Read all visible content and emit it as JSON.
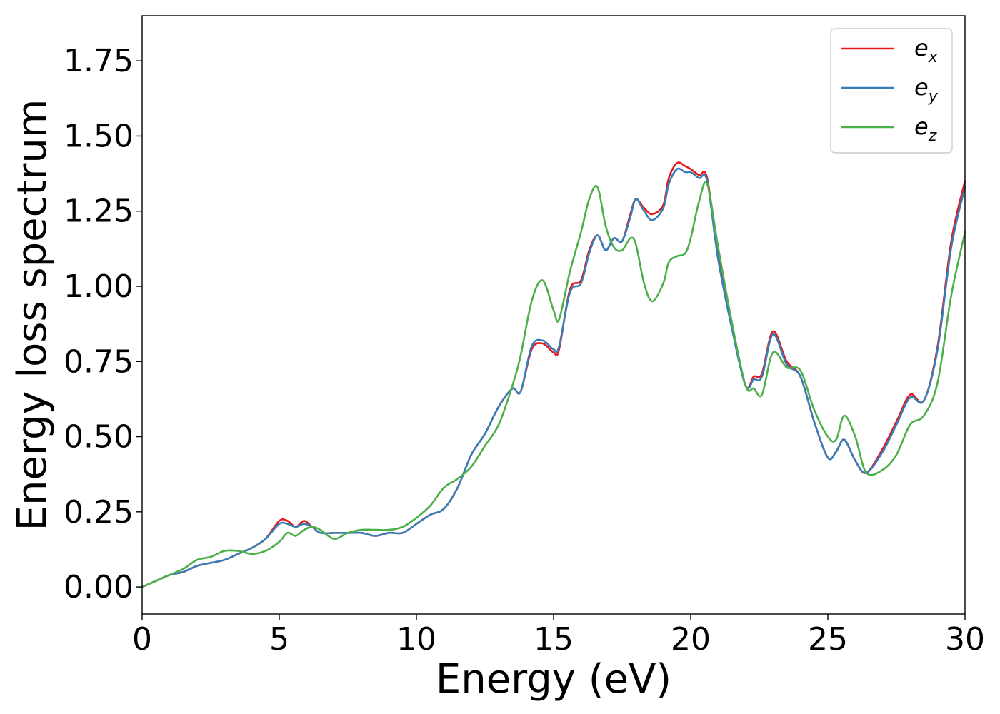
{
  "chart_data": {
    "type": "line",
    "title": "",
    "xlabel": "Energy (eV)",
    "ylabel": "Energy loss spectrum",
    "xlim": [
      0,
      30
    ],
    "ylim": [
      -0.09,
      1.9
    ],
    "xticks": [
      "0",
      "5",
      "10",
      "15",
      "20",
      "25",
      "30"
    ],
    "yticks": [
      "0.00",
      "0.25",
      "0.50",
      "0.75",
      "1.00",
      "1.25",
      "1.50",
      "1.75"
    ],
    "grid": false,
    "legend_position": "top-right",
    "series": [
      {
        "name": "e_x",
        "legend_base": "e",
        "legend_sub": "x",
        "color": "#e41a1c",
        "x": [
          0,
          0.5,
          1,
          1.5,
          2,
          2.5,
          3,
          3.5,
          4,
          4.5,
          5,
          5.3,
          5.6,
          5.9,
          6.2,
          6.5,
          7,
          7.5,
          8,
          8.5,
          9,
          9.5,
          10,
          10.5,
          11,
          11.5,
          12,
          12.5,
          13,
          13.5,
          13.8,
          14.2,
          14.6,
          15,
          15.2,
          15.6,
          16,
          16.3,
          16.6,
          16.9,
          17.2,
          17.5,
          17.8,
          18,
          18.3,
          18.6,
          19,
          19.2,
          19.5,
          19.8,
          20,
          20.3,
          20.6,
          21,
          21.5,
          22,
          22.3,
          22.6,
          23,
          23.5,
          24,
          24.5,
          25,
          25.3,
          25.6,
          26,
          26.4,
          27,
          27.5,
          28,
          28.5,
          29,
          29.5,
          30
        ],
        "y": [
          0,
          0.02,
          0.04,
          0.05,
          0.07,
          0.08,
          0.09,
          0.11,
          0.13,
          0.16,
          0.22,
          0.22,
          0.2,
          0.22,
          0.2,
          0.18,
          0.18,
          0.18,
          0.18,
          0.17,
          0.18,
          0.18,
          0.21,
          0.24,
          0.26,
          0.33,
          0.44,
          0.51,
          0.6,
          0.66,
          0.65,
          0.79,
          0.81,
          0.78,
          0.79,
          0.99,
          1.02,
          1.12,
          1.17,
          1.12,
          1.16,
          1.15,
          1.24,
          1.29,
          1.26,
          1.24,
          1.27,
          1.36,
          1.41,
          1.4,
          1.39,
          1.37,
          1.36,
          1.1,
          0.87,
          0.67,
          0.7,
          0.71,
          0.85,
          0.75,
          0.7,
          0.55,
          0.43,
          0.45,
          0.49,
          0.42,
          0.38,
          0.46,
          0.55,
          0.64,
          0.62,
          0.8,
          1.15,
          1.35
        ]
      },
      {
        "name": "e_y",
        "legend_base": "e",
        "legend_sub": "y",
        "color": "#377eb8",
        "x": [
          0,
          0.5,
          1,
          1.5,
          2,
          2.5,
          3,
          3.5,
          4,
          4.5,
          5,
          5.3,
          5.6,
          5.9,
          6.2,
          6.5,
          7,
          7.5,
          8,
          8.5,
          9,
          9.5,
          10,
          10.5,
          11,
          11.5,
          12,
          12.5,
          13,
          13.5,
          13.8,
          14.2,
          14.6,
          15,
          15.2,
          15.6,
          16,
          16.3,
          16.6,
          16.9,
          17.2,
          17.5,
          17.8,
          18,
          18.3,
          18.6,
          19,
          19.2,
          19.5,
          19.8,
          20,
          20.3,
          20.6,
          21,
          21.5,
          22,
          22.3,
          22.6,
          23,
          23.5,
          24,
          24.5,
          25,
          25.3,
          25.6,
          26,
          26.4,
          27,
          27.5,
          28,
          28.5,
          29,
          29.5,
          30
        ],
        "y": [
          0,
          0.02,
          0.04,
          0.05,
          0.07,
          0.08,
          0.09,
          0.11,
          0.13,
          0.16,
          0.21,
          0.21,
          0.2,
          0.21,
          0.2,
          0.18,
          0.18,
          0.18,
          0.18,
          0.17,
          0.18,
          0.18,
          0.21,
          0.24,
          0.26,
          0.33,
          0.44,
          0.51,
          0.6,
          0.66,
          0.65,
          0.8,
          0.82,
          0.79,
          0.8,
          0.98,
          1.01,
          1.11,
          1.17,
          1.12,
          1.16,
          1.15,
          1.23,
          1.29,
          1.25,
          1.22,
          1.26,
          1.34,
          1.39,
          1.38,
          1.38,
          1.36,
          1.35,
          1.09,
          0.86,
          0.67,
          0.69,
          0.7,
          0.84,
          0.74,
          0.7,
          0.55,
          0.43,
          0.45,
          0.49,
          0.42,
          0.38,
          0.45,
          0.54,
          0.63,
          0.62,
          0.79,
          1.13,
          1.33
        ]
      },
      {
        "name": "e_z",
        "legend_base": "e",
        "legend_sub": "z",
        "color": "#4daf4a",
        "x": [
          0,
          0.5,
          1,
          1.5,
          2,
          2.5,
          3,
          3.5,
          4,
          4.5,
          5,
          5.3,
          5.6,
          5.9,
          6.2,
          6.5,
          7,
          7.5,
          8,
          8.5,
          9,
          9.5,
          10,
          10.5,
          11,
          11.5,
          12,
          12.5,
          13,
          13.5,
          13.8,
          14.2,
          14.6,
          15,
          15.2,
          15.6,
          16,
          16.3,
          16.6,
          16.9,
          17.2,
          17.5,
          17.8,
          18,
          18.3,
          18.6,
          19,
          19.2,
          19.5,
          19.8,
          20,
          20.3,
          20.6,
          21,
          21.5,
          22,
          22.3,
          22.6,
          23,
          23.5,
          24,
          24.5,
          25,
          25.3,
          25.6,
          26,
          26.4,
          27,
          27.5,
          28,
          28.5,
          29,
          29.5,
          30
        ],
        "y": [
          0,
          0.02,
          0.04,
          0.06,
          0.09,
          0.1,
          0.12,
          0.12,
          0.11,
          0.12,
          0.15,
          0.18,
          0.17,
          0.19,
          0.2,
          0.19,
          0.16,
          0.18,
          0.19,
          0.19,
          0.19,
          0.2,
          0.23,
          0.27,
          0.33,
          0.36,
          0.4,
          0.47,
          0.54,
          0.67,
          0.77,
          0.95,
          1.02,
          0.92,
          0.89,
          1.05,
          1.18,
          1.29,
          1.33,
          1.2,
          1.13,
          1.12,
          1.16,
          1.14,
          1.01,
          0.95,
          1.01,
          1.08,
          1.1,
          1.11,
          1.16,
          1.28,
          1.34,
          1.13,
          0.88,
          0.67,
          0.66,
          0.64,
          0.78,
          0.73,
          0.72,
          0.59,
          0.5,
          0.49,
          0.57,
          0.5,
          0.38,
          0.39,
          0.44,
          0.54,
          0.57,
          0.68,
          0.97,
          1.18
        ]
      }
    ]
  }
}
